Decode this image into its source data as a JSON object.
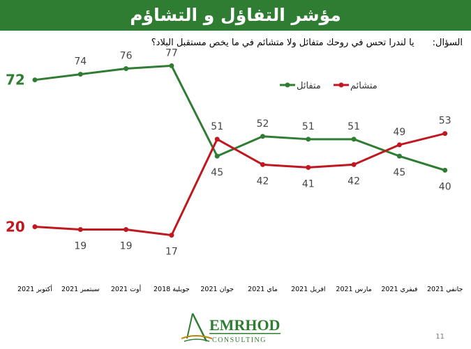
{
  "title": "مؤشر التفاؤل و التشاؤم",
  "question": {
    "label": "السؤال:",
    "text": "يا لندرا تحس في روحك متفائل ولا متشائم في ما يخص مستقبل البلاد؟"
  },
  "chart_data": {
    "type": "line",
    "categories": [
      "أكتوبر 2021",
      "سبتمبر 2021",
      "أوت 2021",
      "جويلية 2018",
      "جوان 2021",
      "ماي 2021",
      "افريل 2021",
      "مارس 2021",
      "فيفري 2021",
      "جانفي 2021"
    ],
    "series": [
      {
        "name": "متفائل",
        "color": "#2e7d32",
        "values": [
          72,
          74,
          76,
          77,
          45,
          52,
          51,
          51,
          45,
          40
        ]
      },
      {
        "name": "متشائم",
        "color": "#c0181f",
        "values": [
          20,
          19,
          19,
          17,
          51,
          42,
          41,
          42,
          49,
          53
        ]
      }
    ],
    "ylim": [
      10,
      85
    ],
    "grid": false,
    "legend": "top-right"
  },
  "logo": {
    "name": "EMRHOD",
    "sub": "CONSULTING"
  },
  "page_number": "11",
  "colors": {
    "optimist": "#2e7d32",
    "pessimist": "#c0181f",
    "title_bg": "#2e7d32"
  }
}
